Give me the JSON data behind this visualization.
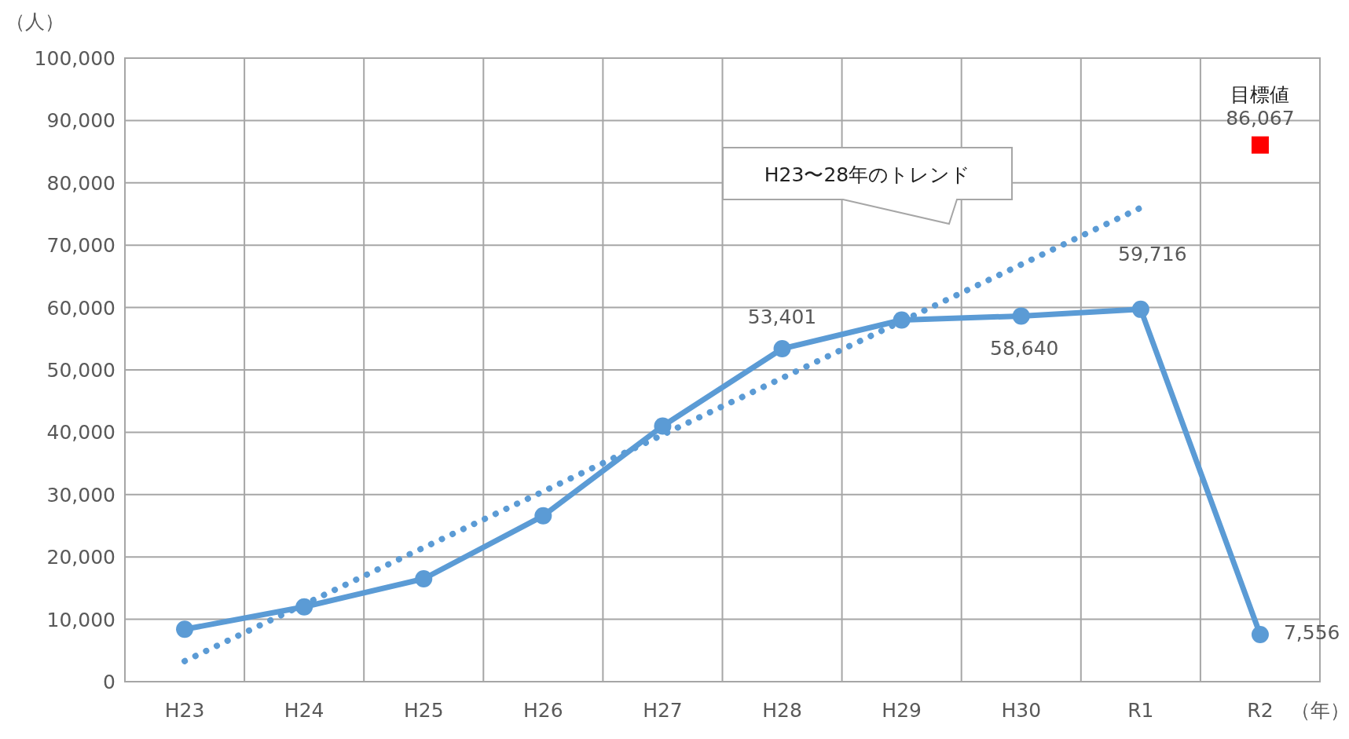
{
  "chart_data": {
    "type": "line",
    "xlabel": "（年）",
    "ylabel": "（人）",
    "categories": [
      "H23",
      "H24",
      "H25",
      "H26",
      "H27",
      "H28",
      "H29",
      "H30",
      "R1",
      "R2"
    ],
    "series": [
      {
        "color": "#5b9bd5",
        "marker": "circle",
        "line_style": "solid",
        "values": [
          8400,
          12000,
          16500,
          26600,
          41000,
          53401,
          58000,
          58640,
          59716,
          7556
        ],
        "value_labels": [
          null,
          null,
          null,
          null,
          null,
          "53,401",
          null,
          "58,640",
          "59,716",
          "7,556"
        ]
      },
      {
        "color": "#5b9bd5",
        "marker": "none",
        "line_style": "dotted",
        "values": [
          3300,
          12400,
          21500,
          30500,
          39600,
          48700,
          57800,
          66900,
          76000,
          null
        ]
      },
      {
        "type": "scatter",
        "color": "#ff0000",
        "marker": "square",
        "x": [
          "R2"
        ],
        "values": [
          86067
        ],
        "value_labels": [
          "86,067"
        ]
      }
    ],
    "ylim": [
      0,
      100000
    ],
    "yticks": [
      {
        "value": 0,
        "label": "0"
      },
      {
        "value": 10000,
        "label": "10,000"
      },
      {
        "value": 20000,
        "label": "20,000"
      },
      {
        "value": 30000,
        "label": "30,000"
      },
      {
        "value": 40000,
        "label": "40,000"
      },
      {
        "value": 50000,
        "label": "50,000"
      },
      {
        "value": 60000,
        "label": "60,000"
      },
      {
        "value": 70000,
        "label": "70,000"
      },
      {
        "value": 80000,
        "label": "80,000"
      },
      {
        "value": 90000,
        "label": "90,000"
      },
      {
        "value": 100000,
        "label": "100,000"
      }
    ],
    "grid": true,
    "annotations": [
      {
        "text": "目標値",
        "x": "R2",
        "y": 86067
      },
      "H23〜28年のトレンド"
    ]
  }
}
